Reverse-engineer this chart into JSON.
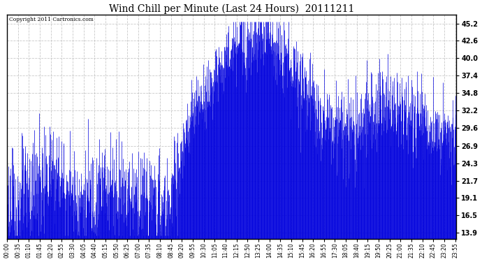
{
  "title": "Wind Chill per Minute (Last 24 Hours)  20111211",
  "copyright": "Copyright 2011 Cartronics.com",
  "line_color": "#0000dd",
  "background_color": "#ffffff",
  "grid_color": "#bbbbbb",
  "yticks": [
    13.9,
    16.5,
    19.1,
    21.7,
    24.3,
    26.9,
    29.6,
    32.2,
    34.8,
    37.4,
    40.0,
    42.6,
    45.2
  ],
  "ymin": 13.0,
  "ymax": 46.5,
  "xtick_labels": [
    "00:00",
    "00:35",
    "01:10",
    "01:45",
    "02:20",
    "02:55",
    "03:30",
    "04:05",
    "04:40",
    "05:15",
    "05:50",
    "06:25",
    "07:00",
    "07:35",
    "08:10",
    "08:45",
    "09:20",
    "09:55",
    "10:30",
    "11:05",
    "11:40",
    "12:15",
    "12:50",
    "13:25",
    "14:00",
    "14:35",
    "15:10",
    "15:45",
    "16:20",
    "16:55",
    "17:30",
    "18:05",
    "18:40",
    "19:15",
    "19:50",
    "20:25",
    "21:00",
    "21:35",
    "22:10",
    "22:45",
    "23:20",
    "23:55"
  ]
}
